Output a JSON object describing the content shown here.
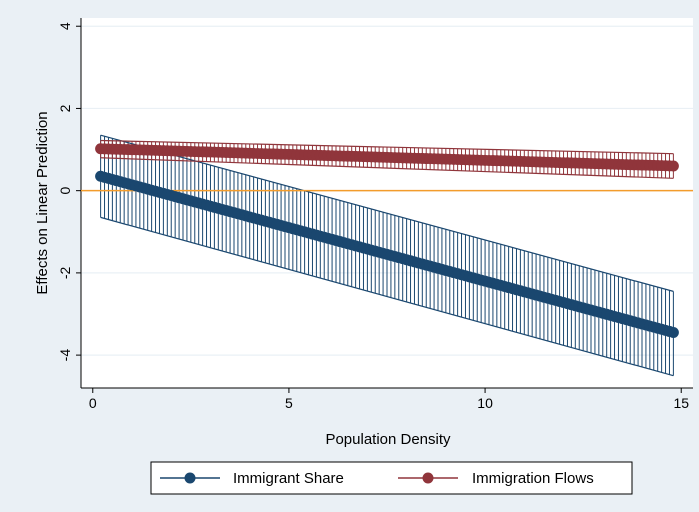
{
  "chart_data": {
    "type": "line",
    "title": "",
    "xlabel": "Population Density",
    "ylabel": "Effects on Linear Prediction",
    "xlim": [
      -0.3,
      15.3
    ],
    "ylim": [
      -4.8,
      4.2
    ],
    "x_ticks": [
      0,
      5,
      10,
      15
    ],
    "y_ticks": [
      -4,
      -2,
      0,
      2,
      4
    ],
    "x_tick_labels": [
      "0",
      "5",
      "10",
      "15"
    ],
    "y_tick_labels": [
      "-4",
      "-2",
      "0",
      "2",
      "4"
    ],
    "reference_line": {
      "y": 0,
      "color": "#f39c2b"
    },
    "grid": true,
    "legend_position": "bottom",
    "x": {
      "start": 0.2,
      "end": 14.8,
      "step": 0.1
    },
    "series": [
      {
        "name": "Immigrant Share",
        "color": "#1a476f",
        "estimate": {
          "start": 0.35,
          "end": -3.45
        },
        "ci_lower": {
          "start": -0.65,
          "end": -4.5
        },
        "ci_upper": {
          "start": 1.35,
          "end": -2.45
        }
      },
      {
        "name": "Immigration Flows",
        "color": "#90353b",
        "estimate": {
          "start": 1.02,
          "end": 0.6
        },
        "ci_lower": {
          "start": 0.8,
          "end": 0.3
        },
        "ci_upper": {
          "start": 1.22,
          "end": 0.9
        }
      }
    ]
  }
}
